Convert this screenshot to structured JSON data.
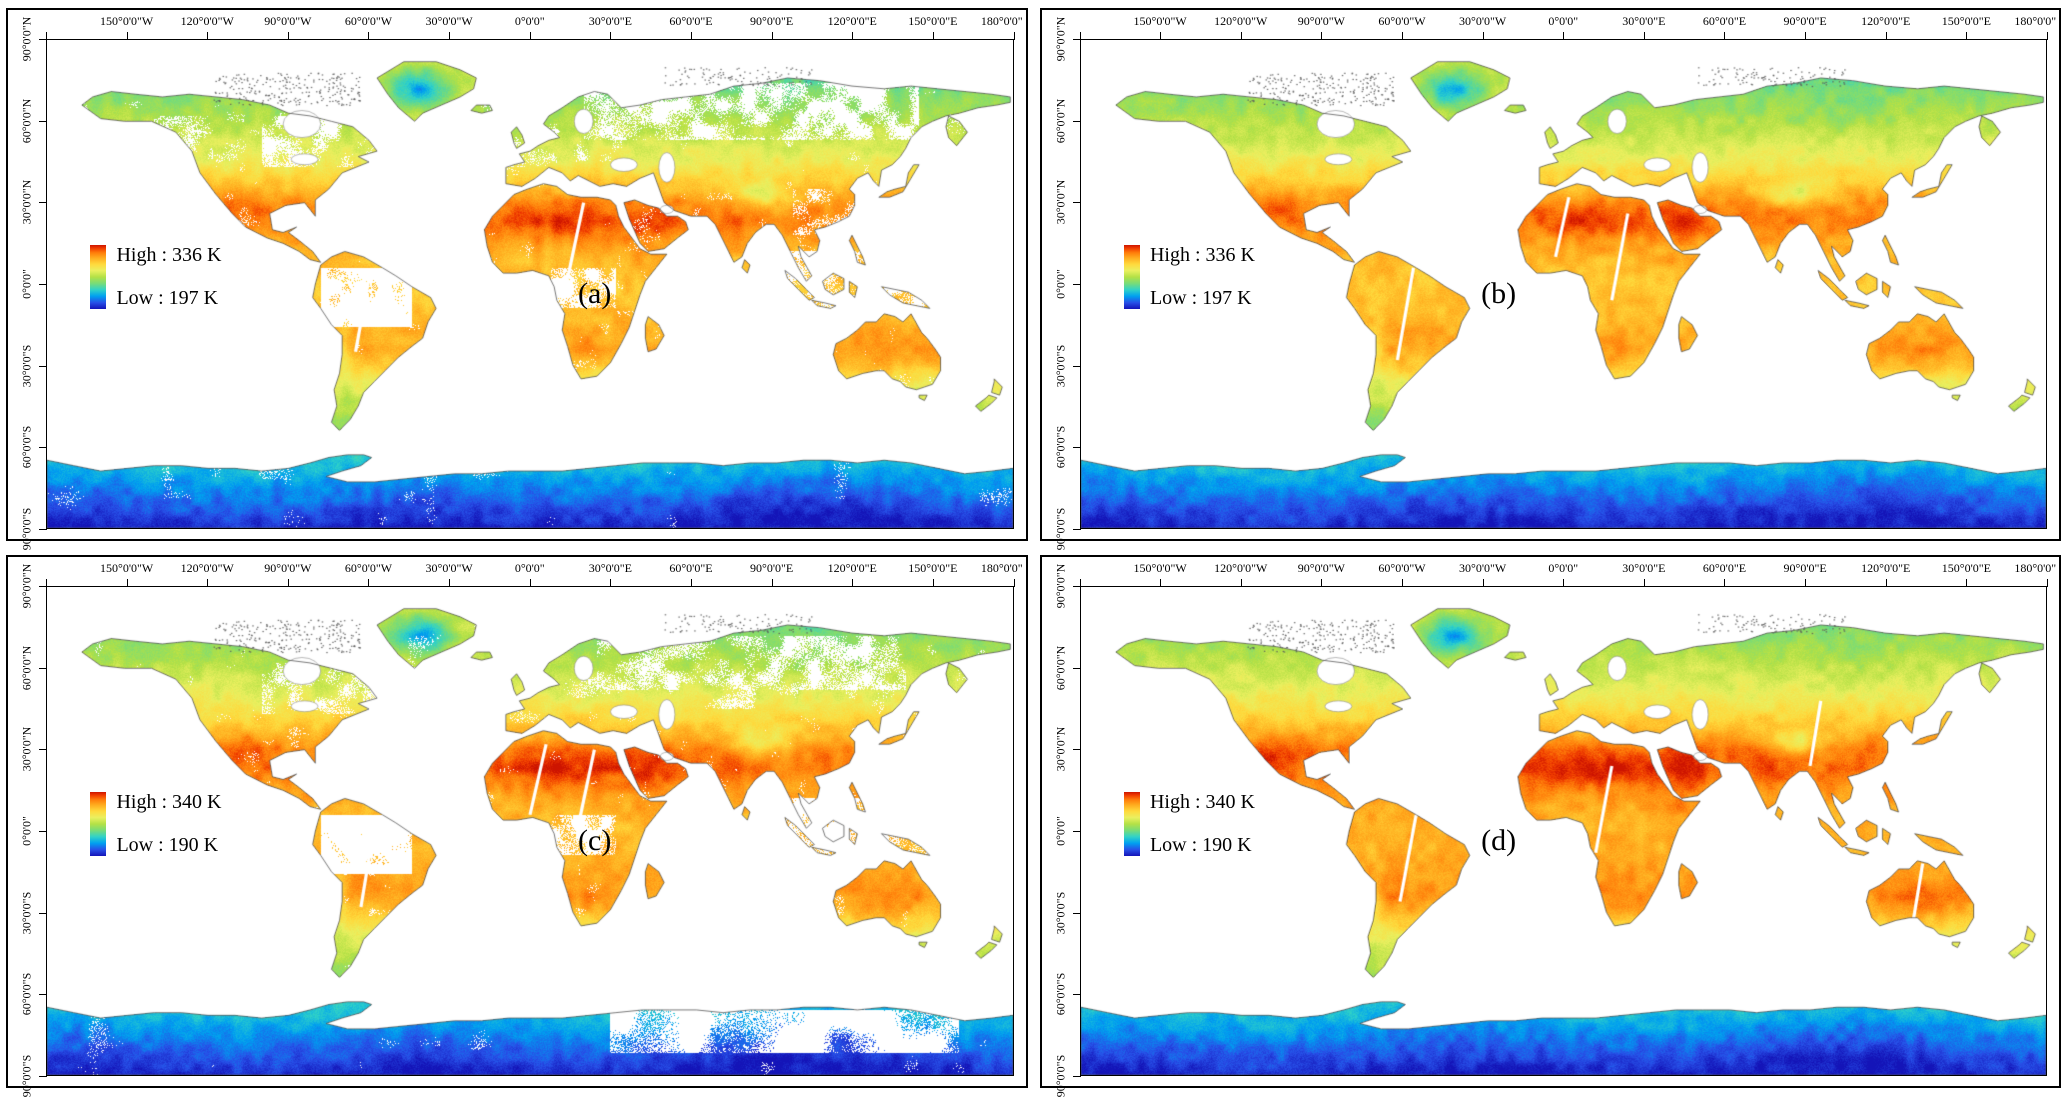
{
  "figure": {
    "description": "Four-panel global land surface temperature maps",
    "panel_count": 4
  },
  "axes": {
    "longitude_labels": [
      "150°0'0\"W",
      "120°0'0\"W",
      "90°0'0\"W",
      "60°0'0\"W",
      "30°0'0\"W",
      "0°0'0\"",
      "30°0'0\"E",
      "60°0'0\"E",
      "90°0'0\"E",
      "120°0'0\"E",
      "150°0'0\"E",
      "180°0'0\""
    ],
    "latitude_labels": [
      "90°0'0\"N",
      "60°0'0\"N",
      "30°0'0\"N",
      "0°0'0\"",
      "30°0'0\"S",
      "60°0'0\"S",
      "90°0'0\"S"
    ]
  },
  "panels": [
    {
      "id": "a",
      "caption": "(a)",
      "legend_high": "High : 336 K",
      "legend_low": "Low : 197 K",
      "high_k": 336,
      "low_k": 197
    },
    {
      "id": "b",
      "caption": "(b)",
      "legend_high": "High : 336 K",
      "legend_low": "Low : 197 K",
      "high_k": 336,
      "low_k": 197
    },
    {
      "id": "c",
      "caption": "(c)",
      "legend_high": "High : 340 K",
      "legend_low": "Low : 190 K",
      "high_k": 340,
      "low_k": 190
    },
    {
      "id": "d",
      "caption": "(d)",
      "legend_high": "High : 340 K",
      "legend_low": "Low : 190 K",
      "high_k": 340,
      "low_k": 190
    }
  ],
  "legend_ramp": [
    {
      "t": 0.0,
      "color": "#1414b8"
    },
    {
      "t": 0.1,
      "color": "#2850e8"
    },
    {
      "t": 0.2,
      "color": "#00a0f0"
    },
    {
      "t": 0.3,
      "color": "#30d2c8"
    },
    {
      "t": 0.4,
      "color": "#78dc78"
    },
    {
      "t": 0.5,
      "color": "#b4e146"
    },
    {
      "t": 0.6,
      "color": "#eaf060"
    },
    {
      "t": 0.7,
      "color": "#ffd93c"
    },
    {
      "t": 0.8,
      "color": "#ffab1e"
    },
    {
      "t": 0.88,
      "color": "#ff7d0a"
    },
    {
      "t": 0.95,
      "color": "#f03c00"
    },
    {
      "t": 1.0,
      "color": "#cd1400"
    }
  ],
  "map_colors": {
    "ocean": "#ffffff",
    "coastline": "#555555",
    "frame": "#000000"
  }
}
